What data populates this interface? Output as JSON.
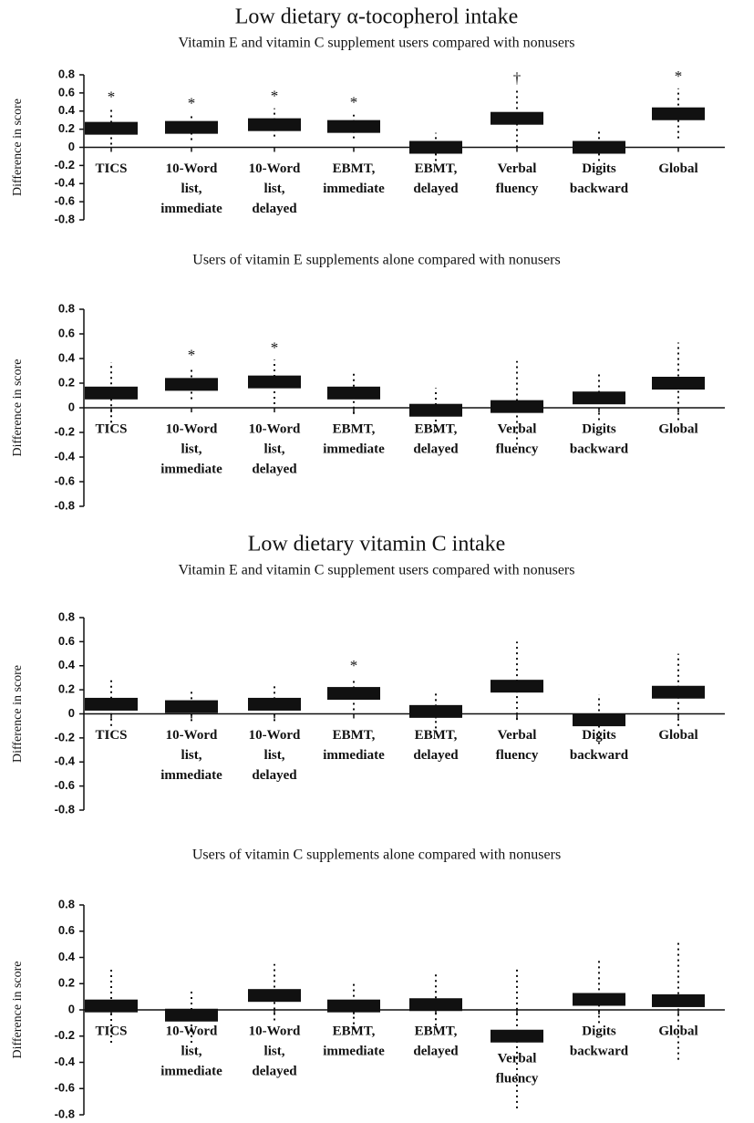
{
  "chart_data": [
    {
      "type": "interval",
      "heading": "Low dietary α-tocopherol intake",
      "title": "Vitamin E and vitamin C supplement users compared with nonusers",
      "y_label": "Difference in score",
      "categories": [
        [
          "TICS"
        ],
        [
          "10-Word",
          "list,",
          "immediate"
        ],
        [
          "10-Word",
          "list,",
          "delayed"
        ],
        [
          "EBMT,",
          "immediate"
        ],
        [
          "EBMT,",
          "delayed"
        ],
        [
          "Verbal",
          "fluency"
        ],
        [
          "Digits",
          "backward"
        ],
        [
          "Global"
        ]
      ],
      "values": [
        0.21,
        0.22,
        0.25,
        0.23,
        0.0,
        0.32,
        0.0,
        0.37
      ],
      "lower": [
        0.03,
        0.08,
        0.12,
        0.1,
        -0.15,
        0.0,
        -0.15,
        0.1
      ],
      "upper": [
        0.42,
        0.35,
        0.43,
        0.36,
        0.16,
        0.63,
        0.2,
        0.65
      ],
      "annotations": [
        "*",
        "*",
        "*",
        "*",
        null,
        "†",
        null,
        "*"
      ],
      "ylim": [
        -0.8,
        0.8
      ],
      "yticks": [
        0.8,
        0.6,
        0.4,
        0.2,
        0,
        -0.2,
        -0.4,
        -0.6,
        -0.8
      ],
      "color": "#111"
    },
    {
      "type": "interval",
      "title": "Users of vitamin E supplements alone compared with nonusers",
      "y_label": "Difference in score",
      "categories": [
        [
          "TICS"
        ],
        [
          "10-Word",
          "list,",
          "immediate"
        ],
        [
          "10-Word",
          "list,",
          "delayed"
        ],
        [
          "EBMT,",
          "immediate"
        ],
        [
          "EBMT,",
          "delayed"
        ],
        [
          "Verbal",
          "fluency"
        ],
        [
          "Digits",
          "backward"
        ],
        [
          "Global"
        ]
      ],
      "values": [
        0.12,
        0.19,
        0.21,
        0.12,
        -0.02,
        0.01,
        0.08,
        0.2
      ],
      "lower": [
        -0.12,
        0.07,
        0.03,
        -0.05,
        -0.2,
        -0.3,
        -0.1,
        -0.1
      ],
      "upper": [
        0.37,
        0.33,
        0.39,
        0.28,
        0.16,
        0.38,
        0.3,
        0.53
      ],
      "annotations": [
        null,
        "*",
        "*",
        null,
        null,
        null,
        null,
        null
      ],
      "ylim": [
        -0.8,
        0.8
      ],
      "yticks": [
        0.8,
        0.6,
        0.4,
        0.2,
        0,
        -0.2,
        -0.4,
        -0.6,
        -0.8
      ],
      "color": "#111"
    },
    {
      "type": "interval",
      "heading": "Low dietary vitamin C intake",
      "title": "Vitamin E and vitamin C supplement users compared with nonusers",
      "y_label": "Difference in score",
      "categories": [
        [
          "TICS"
        ],
        [
          "10-Word",
          "list,",
          "immediate"
        ],
        [
          "10-Word",
          "list,",
          "delayed"
        ],
        [
          "EBMT,",
          "immediate"
        ],
        [
          "EBMT,",
          "delayed"
        ],
        [
          "Verbal",
          "fluency"
        ],
        [
          "Digits",
          "backward"
        ],
        [
          "Global"
        ]
      ],
      "values": [
        0.08,
        0.06,
        0.08,
        0.17,
        0.02,
        0.23,
        -0.05,
        0.18
      ],
      "lower": [
        -0.1,
        -0.06,
        -0.06,
        0.03,
        -0.12,
        -0.05,
        -0.25,
        -0.1
      ],
      "upper": [
        0.28,
        0.19,
        0.25,
        0.3,
        0.17,
        0.6,
        0.16,
        0.5
      ],
      "annotations": [
        null,
        null,
        null,
        "*",
        null,
        null,
        null,
        null
      ],
      "ylim": [
        -0.8,
        0.8
      ],
      "yticks": [
        0.8,
        0.6,
        0.4,
        0.2,
        0,
        -0.2,
        -0.4,
        -0.6,
        -0.8
      ],
      "color": "#111"
    },
    {
      "type": "interval",
      "title": "Users of vitamin C supplements alone compared with nonusers",
      "y_label": "Difference in score",
      "categories": [
        [
          "TICS"
        ],
        [
          "10-Word",
          "list,",
          "immediate"
        ],
        [
          "10-Word",
          "list,",
          "delayed"
        ],
        [
          "EBMT,",
          "immediate"
        ],
        [
          "EBMT,",
          "delayed"
        ],
        [
          "Verbal",
          "fluency"
        ],
        [
          "Digits",
          "backward"
        ],
        [
          "Global"
        ]
      ],
      "values": [
        0.03,
        -0.04,
        0.11,
        0.03,
        0.04,
        -0.2,
        0.08,
        0.07
      ],
      "lower": [
        -0.25,
        -0.25,
        -0.08,
        -0.15,
        -0.12,
        -0.75,
        -0.1,
        -0.38
      ],
      "upper": [
        0.33,
        0.16,
        0.35,
        0.22,
        0.27,
        0.32,
        0.38,
        0.52
      ],
      "annotations": [
        null,
        null,
        null,
        null,
        null,
        null,
        null,
        null
      ],
      "ylim": [
        -0.8,
        0.8
      ],
      "yticks": [
        0.8,
        0.6,
        0.4,
        0.2,
        0,
        -0.2,
        -0.4,
        -0.6,
        -0.8
      ],
      "color": "#111"
    }
  ]
}
